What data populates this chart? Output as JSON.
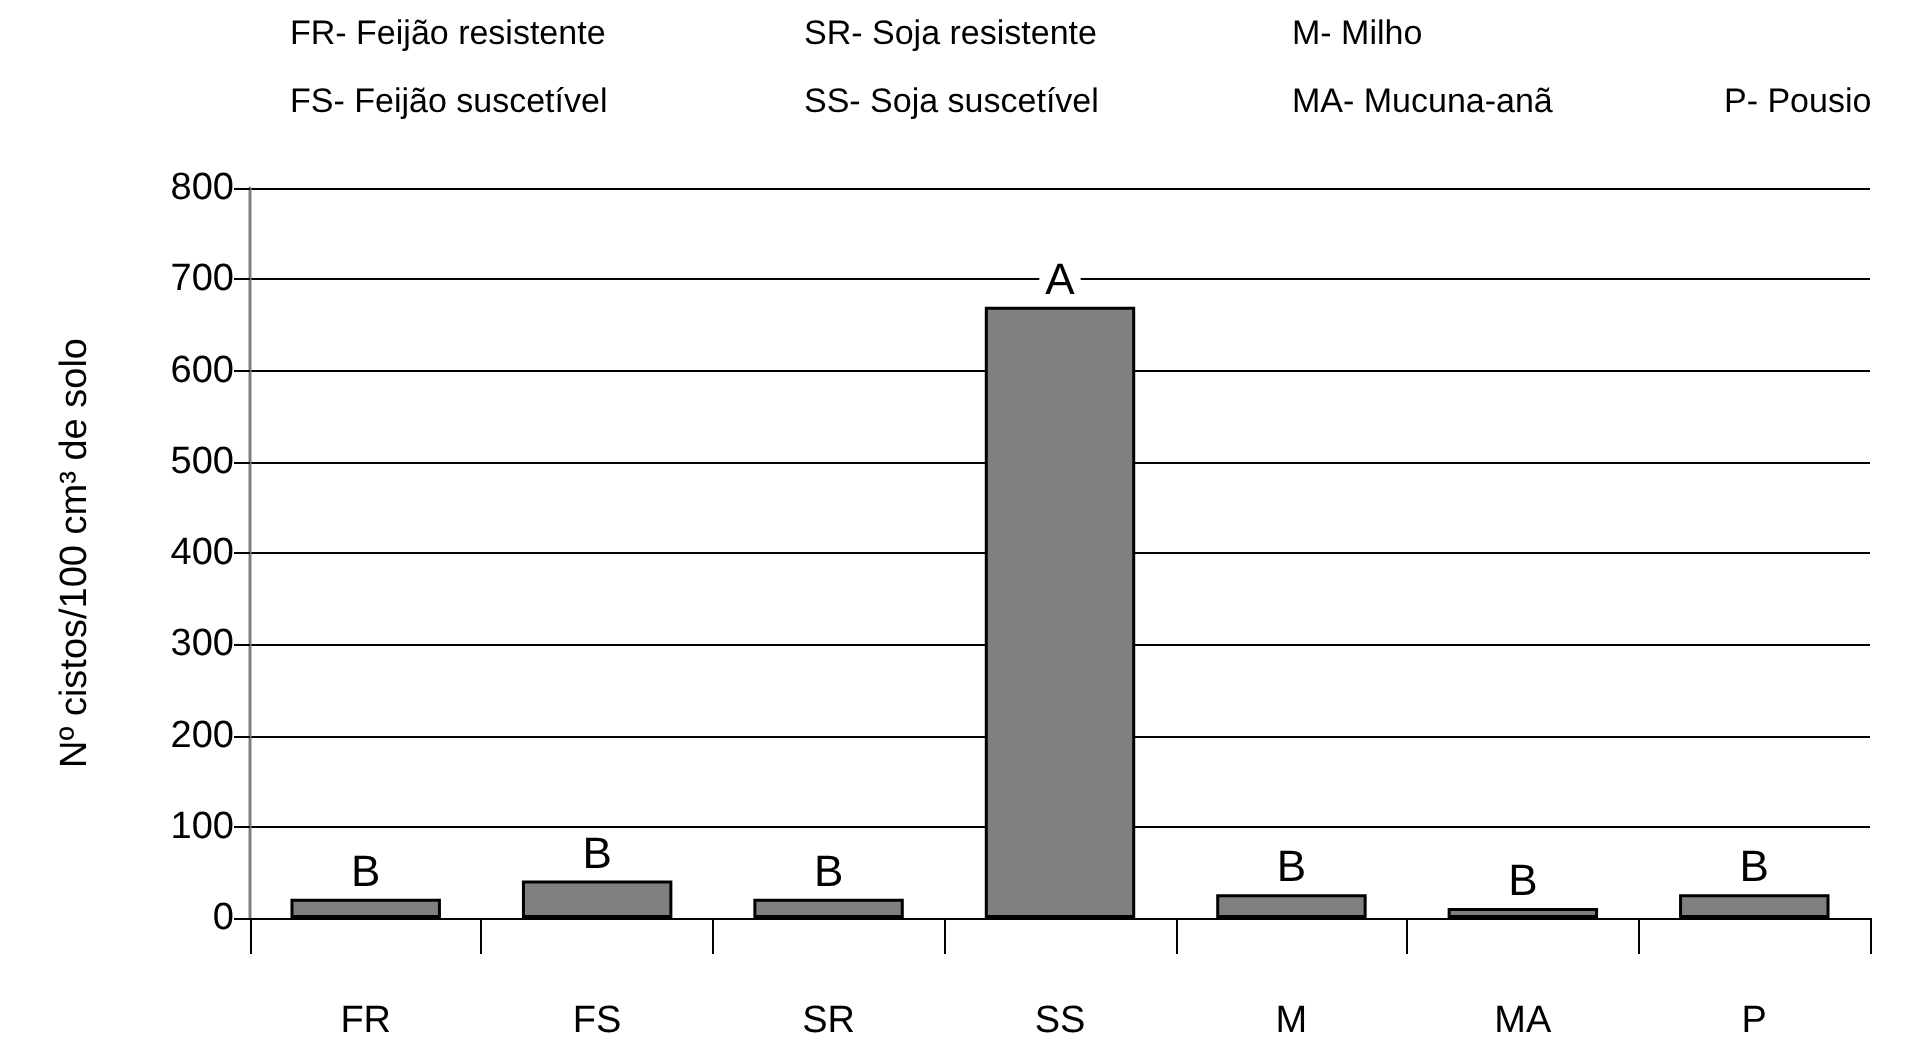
{
  "chart_data": {
    "type": "bar",
    "ylabel": "Nº cistos/100 cm³ de solo",
    "categories": [
      "FR",
      "FS",
      "SR",
      "SS",
      "M",
      "MA",
      "P"
    ],
    "values": [
      21,
      41,
      21,
      670,
      26,
      11,
      26
    ],
    "color": "#808080",
    "ylim": [
      0,
      800
    ],
    "yticks": [
      0,
      100,
      200,
      300,
      400,
      500,
      600,
      700,
      800
    ],
    "grid": "y",
    "annotations": [
      "FR- Feijão resistente",
      "FS- Feijão suscetível",
      "SR- Soja resistente",
      "SS- Soja suscetível",
      "M- Milho",
      "MA- Mucuna-anã",
      "P- Pousio",
      {
        "text": "B",
        "x": "FR",
        "y": 21
      },
      {
        "text": "B",
        "x": "FS",
        "y": 41
      },
      {
        "text": "B",
        "x": "SR",
        "y": 21
      },
      {
        "text": "A",
        "x": "SS",
        "y": 670
      },
      {
        "text": "B",
        "x": "M",
        "y": 26
      },
      {
        "text": "B",
        "x": "MA",
        "y": 11
      },
      {
        "text": "B",
        "x": "P",
        "y": 26
      }
    ]
  }
}
